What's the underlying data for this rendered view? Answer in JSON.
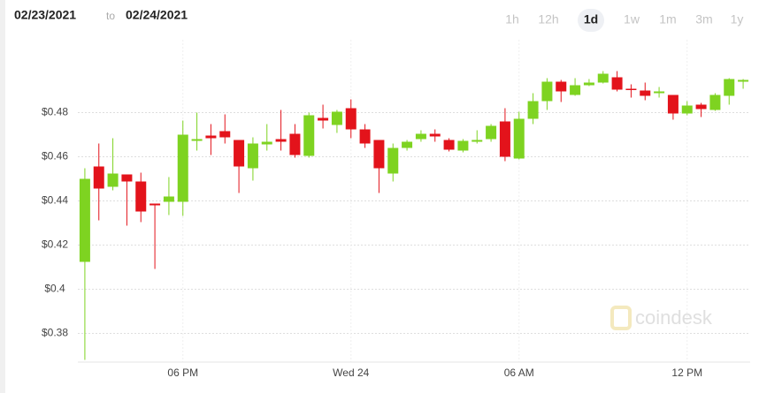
{
  "header": {
    "from": "02/23/2021",
    "to_word": "to",
    "to": "02/24/2021"
  },
  "ranges": [
    "1h",
    "12h",
    "1d",
    "1w",
    "1m",
    "3m",
    "1y"
  ],
  "selected_range": "1d",
  "watermark": "coindesk",
  "chart_data": {
    "type": "candlestick",
    "up_color": "#7ed321",
    "down_color": "#e3131b",
    "x": [
      14.5,
      15,
      15.5,
      16,
      16.5,
      17,
      17.5,
      18,
      18.5,
      19,
      19.5,
      20,
      20.5,
      21,
      21.5,
      22,
      22.5,
      23,
      23.5,
      24,
      24.5,
      25,
      25.5,
      26,
      26.5,
      27,
      27.5,
      28,
      28.5,
      29,
      29.5,
      30,
      30.5,
      31,
      31.5,
      32,
      32.5,
      33,
      33.5,
      34,
      34.5,
      35,
      35.5,
      36,
      36.5,
      37,
      37.5,
      38
    ],
    "open": [
      0.4124,
      0.4556,
      0.4464,
      0.452,
      0.4488,
      0.4388,
      0.4396,
      0.4396,
      0.4672,
      0.4696,
      0.4716,
      0.4676,
      0.4548,
      0.4656,
      0.468,
      0.4704,
      0.4604,
      0.4776,
      0.4744,
      0.482,
      0.4724,
      0.4676,
      0.4524,
      0.464,
      0.468,
      0.4704,
      0.4676,
      0.4628,
      0.4668,
      0.468,
      0.476,
      0.4592,
      0.4772,
      0.4852,
      0.494,
      0.488,
      0.4924,
      0.4936,
      0.496,
      0.4908,
      0.49,
      0.4888,
      0.488,
      0.4796,
      0.4836,
      0.4812,
      0.4876,
      0.494
    ],
    "high": [
      0.4548,
      0.466,
      0.4684,
      0.452,
      0.4528,
      0.4388,
      0.4508,
      0.4764,
      0.48,
      0.4748,
      0.4792,
      0.4676,
      0.4688,
      0.4748,
      0.4812,
      0.4748,
      0.48,
      0.4836,
      0.4812,
      0.486,
      0.4748,
      0.4676,
      0.466,
      0.4676,
      0.472,
      0.4724,
      0.4684,
      0.468,
      0.472,
      0.4748,
      0.482,
      0.4804,
      0.4888,
      0.4956,
      0.4948,
      0.4956,
      0.4952,
      0.4988,
      0.4988,
      0.4928,
      0.4936,
      0.4916,
      0.488,
      0.4852,
      0.4844,
      0.4888,
      0.4956,
      0.4952
    ],
    "low": [
      0.368,
      0.4312,
      0.4448,
      0.4288,
      0.4304,
      0.4092,
      0.4336,
      0.4332,
      0.4628,
      0.4608,
      0.466,
      0.4436,
      0.4492,
      0.4628,
      0.4628,
      0.4596,
      0.4596,
      0.4728,
      0.4708,
      0.4684,
      0.464,
      0.4436,
      0.4488,
      0.4628,
      0.4668,
      0.4668,
      0.4624,
      0.462,
      0.466,
      0.4668,
      0.458,
      0.4588,
      0.4748,
      0.4812,
      0.4848,
      0.4876,
      0.492,
      0.4932,
      0.4896,
      0.4868,
      0.4856,
      0.4868,
      0.4768,
      0.4788,
      0.478,
      0.4808,
      0.4836,
      0.4908
    ],
    "close": [
      0.45,
      0.4456,
      0.4524,
      0.4488,
      0.4352,
      0.438,
      0.442,
      0.47,
      0.468,
      0.4684,
      0.4688,
      0.4556,
      0.466,
      0.4668,
      0.4668,
      0.4608,
      0.4788,
      0.4764,
      0.4804,
      0.4724,
      0.466,
      0.4548,
      0.464,
      0.4668,
      0.4704,
      0.4692,
      0.4632,
      0.4672,
      0.4676,
      0.474,
      0.46,
      0.4772,
      0.4852,
      0.494,
      0.4896,
      0.4924,
      0.4936,
      0.4976,
      0.4904,
      0.4904,
      0.4876,
      0.4896,
      0.4796,
      0.4832,
      0.4816,
      0.488,
      0.4952,
      0.4948
    ],
    "xlim": [
      14.25,
      38.25
    ],
    "xticks": [
      {
        "value": 18,
        "label": "06 PM"
      },
      {
        "value": 24,
        "label": "Wed 24"
      },
      {
        "value": 30,
        "label": "06 AM"
      },
      {
        "value": 36,
        "label": "12 PM"
      }
    ],
    "ylim": [
      0.367,
      0.513
    ],
    "yticks": [
      {
        "value": 0.38,
        "label": "$0.38"
      },
      {
        "value": 0.4,
        "label": "$0.4"
      },
      {
        "value": 0.42,
        "label": "$0.42"
      },
      {
        "value": 0.44,
        "label": "$0.44"
      },
      {
        "value": 0.46,
        "label": "$0.46"
      },
      {
        "value": 0.48,
        "label": "$0.48"
      }
    ],
    "grid": true
  }
}
